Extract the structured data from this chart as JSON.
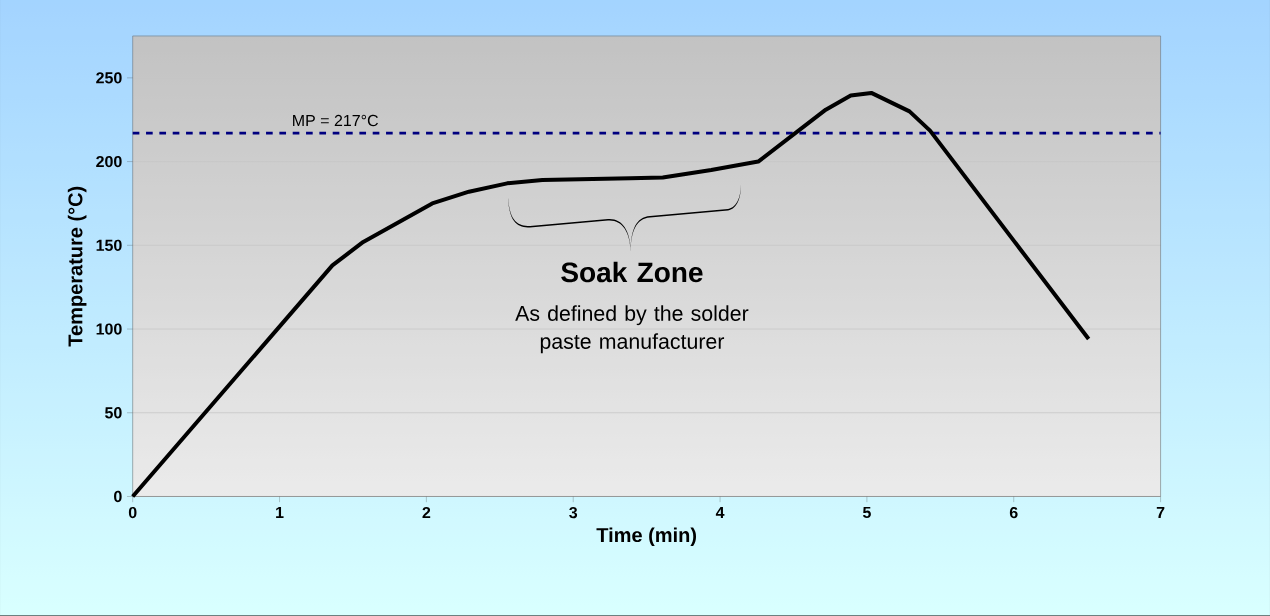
{
  "chart_data": {
    "type": "line",
    "xlabel": "Time (min)",
    "ylabel": "Temperature (°C)",
    "x": [
      0,
      1.36,
      1.57,
      2.04,
      2.29,
      2.55,
      2.79,
      3.39,
      3.61,
      3.94,
      4.26,
      4.72,
      4.89,
      5.03,
      5.29,
      5.43,
      6.51
    ],
    "series": [
      {
        "color": "#000000",
        "values": [
          0,
          138,
          152,
          175,
          182,
          187,
          189,
          190,
          190.5,
          195,
          200,
          231,
          239.5,
          241,
          230,
          218.5,
          94
        ]
      }
    ],
    "xlim": [
      0,
      7
    ],
    "ylim": [
      0,
      275
    ],
    "xticks": [
      0,
      1,
      2,
      3,
      4,
      5,
      6,
      7
    ],
    "yticks": [
      0,
      50,
      100,
      150,
      200,
      250
    ],
    "grid": "y",
    "marker": "none",
    "line_style": "solid",
    "ref_lines": [
      {
        "axis": "y",
        "value": 217,
        "label": "MP = 217°C",
        "color": "#000080",
        "line_style": "dashed"
      }
    ],
    "annotations": [
      "Soak Zone",
      "As defined by the solder paste manufacturer"
    ]
  }
}
